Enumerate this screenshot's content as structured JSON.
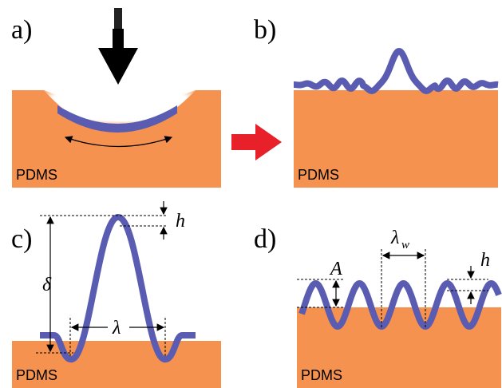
{
  "panels": [
    {
      "label": "a)",
      "substrate": "PDMS"
    },
    {
      "label": "b)",
      "substrate": "PDMS"
    },
    {
      "label": "c)",
      "substrate": "PDMS",
      "annotations": {
        "thickness": "h",
        "depth": "δ",
        "wavelength": "λ"
      }
    },
    {
      "label": "d)",
      "substrate": "PDMS",
      "annotations": {
        "amplitude": "A",
        "wavelength": "λ",
        "wavelength_subscript": "w",
        "thickness": "h"
      }
    }
  ]
}
